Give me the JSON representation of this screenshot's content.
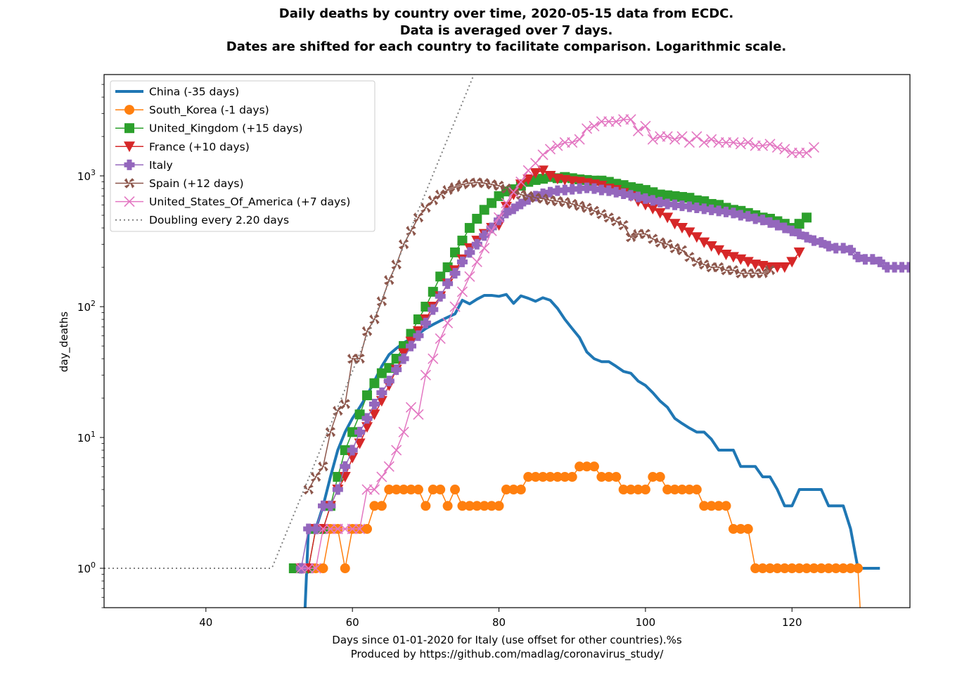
{
  "chart_data": {
    "type": "line",
    "title_lines": [
      "Daily deaths by country over time, 2020-05-15 data from ECDC.",
      "Data is averaged over 7 days.",
      "Dates are shifted for each country to facilitate comparison. Logarithmic scale."
    ],
    "xlabel_lines": [
      "Days since 01-01-2020 for Italy (use offset for other countries).%s",
      "Produced by https://github.com/madlag/coronavirus_study/"
    ],
    "ylabel": "day_deaths",
    "xscale": "linear",
    "yscale": "log",
    "xlim": [
      26.1,
      136.1
    ],
    "ylim": [
      0.5,
      5950
    ],
    "xticks": [
      40,
      60,
      80,
      100,
      120
    ],
    "xtick_labels": [
      "40",
      "60",
      "80",
      "100",
      "120"
    ],
    "yticks": [
      1,
      10,
      100,
      1000
    ],
    "ytick_labels": [
      {
        "base": "10",
        "exp": "0"
      },
      {
        "base": "10",
        "exp": "1"
      },
      {
        "base": "10",
        "exp": "2"
      },
      {
        "base": "10",
        "exp": "3"
      }
    ],
    "grid": false,
    "legend_position": "top-left",
    "series": [
      {
        "name": "China (-35 days)",
        "color": "#1f77b4",
        "marker": "none",
        "x_start": 53,
        "values": [
          0.1,
          2,
          2,
          3,
          5,
          8,
          11,
          14,
          17,
          21,
          27,
          35,
          43,
          48,
          53,
          57,
          62,
          68,
          73,
          78,
          83,
          88,
          112,
          105,
          114,
          122,
          122,
          120,
          124,
          106,
          121,
          116,
          110,
          117,
          112,
          97,
          80,
          68,
          58,
          45,
          40,
          38,
          38,
          35,
          32,
          31,
          27,
          25,
          22,
          19,
          17,
          14,
          12.8,
          11.8,
          11,
          11,
          9.7,
          8,
          8,
          8,
          6,
          6,
          6,
          5,
          5,
          4,
          3,
          3,
          4,
          4,
          4,
          4,
          3,
          3,
          3,
          2,
          1,
          1,
          1,
          1
        ]
      },
      {
        "name": "South_Korea (-1 days)",
        "color": "#ff7f0e",
        "marker": "circle",
        "x_start": 53,
        "values": [
          1,
          1,
          1,
          1,
          2,
          2,
          1,
          2,
          2,
          2,
          3,
          3,
          4,
          4,
          4,
          4,
          4,
          3,
          4,
          4,
          3,
          4,
          3,
          3,
          3,
          3,
          3,
          3,
          4,
          4,
          4,
          5,
          5,
          5,
          5,
          5,
          5,
          5,
          6,
          6,
          6,
          5,
          5,
          5,
          4,
          4,
          4,
          4,
          5,
          5,
          4,
          4,
          4,
          4,
          4,
          3,
          3,
          3,
          3,
          2,
          2,
          2,
          1,
          1,
          1,
          1,
          1,
          1,
          1,
          1,
          1,
          1,
          1,
          1,
          1,
          1,
          1,
          0.1
        ]
      },
      {
        "name": "United_Kingdom (+15 days)",
        "color": "#2ca02c",
        "marker": "square",
        "x_start": 52,
        "values": [
          1,
          1,
          1,
          2,
          2,
          3,
          5,
          8,
          11,
          15,
          21,
          26,
          31,
          34,
          40,
          50,
          62,
          80,
          100,
          130,
          170,
          200,
          260,
          320,
          400,
          470,
          550,
          620,
          700,
          760,
          790,
          840,
          900,
          930,
          950,
          980,
          960,
          980,
          960,
          940,
          930,
          920,
          920,
          900,
          870,
          850,
          820,
          800,
          780,
          750,
          720,
          710,
          700,
          690,
          680,
          650,
          640,
          610,
          600,
          570,
          550,
          540,
          520,
          500,
          480,
          470,
          450,
          430,
          400,
          430,
          480
        ]
      },
      {
        "name": "France (+10 days)",
        "color": "#d62728",
        "marker": "triangle-down",
        "x_start": 53,
        "values": [
          1,
          1,
          2,
          2,
          3,
          4,
          5,
          7,
          9,
          12,
          15,
          19,
          25,
          33,
          44,
          54,
          65,
          80,
          100,
          120,
          150,
          190,
          230,
          280,
          320,
          360,
          400,
          420,
          580,
          720,
          860,
          940,
          1050,
          1100,
          1000,
          950,
          930,
          910,
          900,
          880,
          860,
          840,
          800,
          780,
          740,
          700,
          640,
          600,
          560,
          520,
          480,
          430,
          400,
          370,
          340,
          310,
          290,
          270,
          250,
          240,
          230,
          220,
          210,
          205,
          200,
          200,
          200,
          220,
          260
        ]
      },
      {
        "name": "Italy",
        "color": "#9467bd",
        "marker": "plus-filled",
        "x_start": 53,
        "values": [
          1,
          2,
          2,
          3,
          3,
          4,
          6,
          8,
          11,
          14,
          18,
          22,
          27,
          33,
          40,
          50,
          60,
          75,
          95,
          120,
          150,
          180,
          220,
          260,
          300,
          350,
          400,
          460,
          520,
          560,
          610,
          660,
          700,
          730,
          750,
          770,
          780,
          790,
          800,
          810,
          800,
          780,
          770,
          750,
          730,
          710,
          690,
          670,
          650,
          630,
          610,
          600,
          590,
          580,
          570,
          560,
          550,
          540,
          530,
          520,
          500,
          490,
          470,
          460,
          440,
          420,
          400,
          380,
          360,
          340,
          320,
          310,
          290,
          280,
          280,
          270,
          240,
          230,
          230,
          220,
          200,
          200,
          200,
          200,
          200
        ]
      },
      {
        "name": "Spain (+12 days)",
        "color": "#8c564b",
        "marker": "x-filled",
        "x_start": 54,
        "values": [
          4,
          5,
          6,
          11,
          16,
          18,
          40,
          40,
          65,
          80,
          110,
          160,
          210,
          300,
          380,
          480,
          570,
          650,
          720,
          780,
          820,
          860,
          880,
          890,
          880,
          860,
          840,
          800,
          760,
          720,
          700,
          680,
          670,
          650,
          640,
          630,
          610,
          590,
          570,
          540,
          510,
          480,
          450,
          420,
          340,
          360,
          360,
          330,
          310,
          300,
          280,
          270,
          240,
          220,
          210,
          200,
          200,
          190,
          190,
          180,
          180,
          180,
          180,
          190
        ]
      },
      {
        "name": "United_States_Of_America (+7 days)",
        "color": "#e377c2",
        "marker": "x",
        "x_start": 53,
        "values": [
          1,
          1,
          1,
          2,
          2,
          2,
          2,
          2,
          2,
          4,
          4,
          5,
          6,
          8,
          11,
          17,
          15,
          30,
          40,
          57,
          75,
          100,
          130,
          170,
          220,
          280,
          380,
          480,
          620,
          750,
          900,
          1100,
          1250,
          1450,
          1600,
          1700,
          1800,
          1800,
          1900,
          2300,
          2400,
          2600,
          2600,
          2600,
          2700,
          2700,
          2200,
          2400,
          1900,
          2000,
          2000,
          1900,
          2000,
          1800,
          2000,
          1800,
          1900,
          1800,
          1800,
          1800,
          1750,
          1800,
          1700,
          1700,
          1750,
          1650,
          1600,
          1500,
          1500,
          1500,
          1650
        ]
      },
      {
        "name": "Doubling every 2.20 days",
        "color": "#808080",
        "marker": "none",
        "linestyle": "dotted",
        "piecewise": {
          "flat_until_x": 49.0,
          "flat_value": 1,
          "doubling_days": 2.2
        }
      }
    ]
  }
}
